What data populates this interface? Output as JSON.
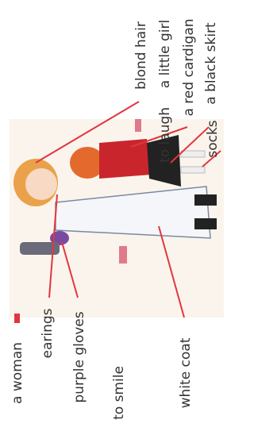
{
  "labels": [
    "blond hair",
    "a little girl",
    "to laugh",
    "a red cardigan",
    "a black skirt",
    "socks",
    "a woman",
    "earings",
    "purple gloves",
    "to smile",
    "white coat"
  ]
}
